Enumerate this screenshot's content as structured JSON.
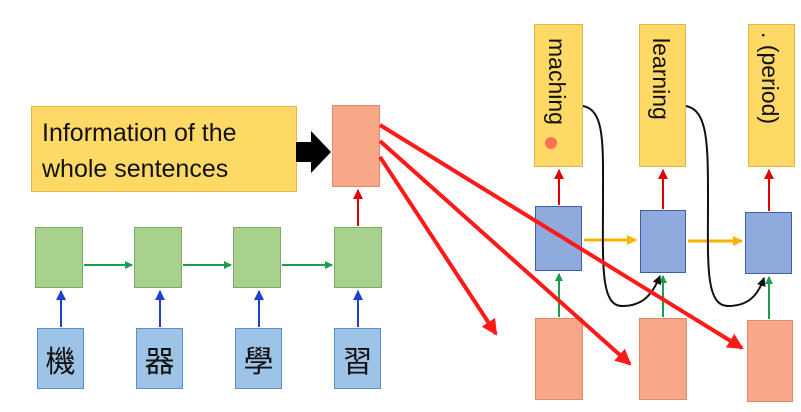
{
  "info_box": {
    "line1": "Information of the",
    "line2": "whole sentences"
  },
  "encoder": {
    "input_tokens": [
      "機",
      "器",
      "學",
      "習"
    ]
  },
  "decoder": {
    "outputs": [
      "maching",
      "learning",
      ". (period)"
    ]
  },
  "colors": {
    "rnn_encoder": "#a9d18e",
    "rnn_decoder": "#8faadc",
    "context": "#f8a888",
    "output_box": "#ffd966",
    "input_box": "#9dc3e6",
    "arrow_red": "#ff0000",
    "arrow_green": "#1a9e4a",
    "arrow_blue": "#1f3fd0",
    "arrow_orange": "#f5b400"
  }
}
